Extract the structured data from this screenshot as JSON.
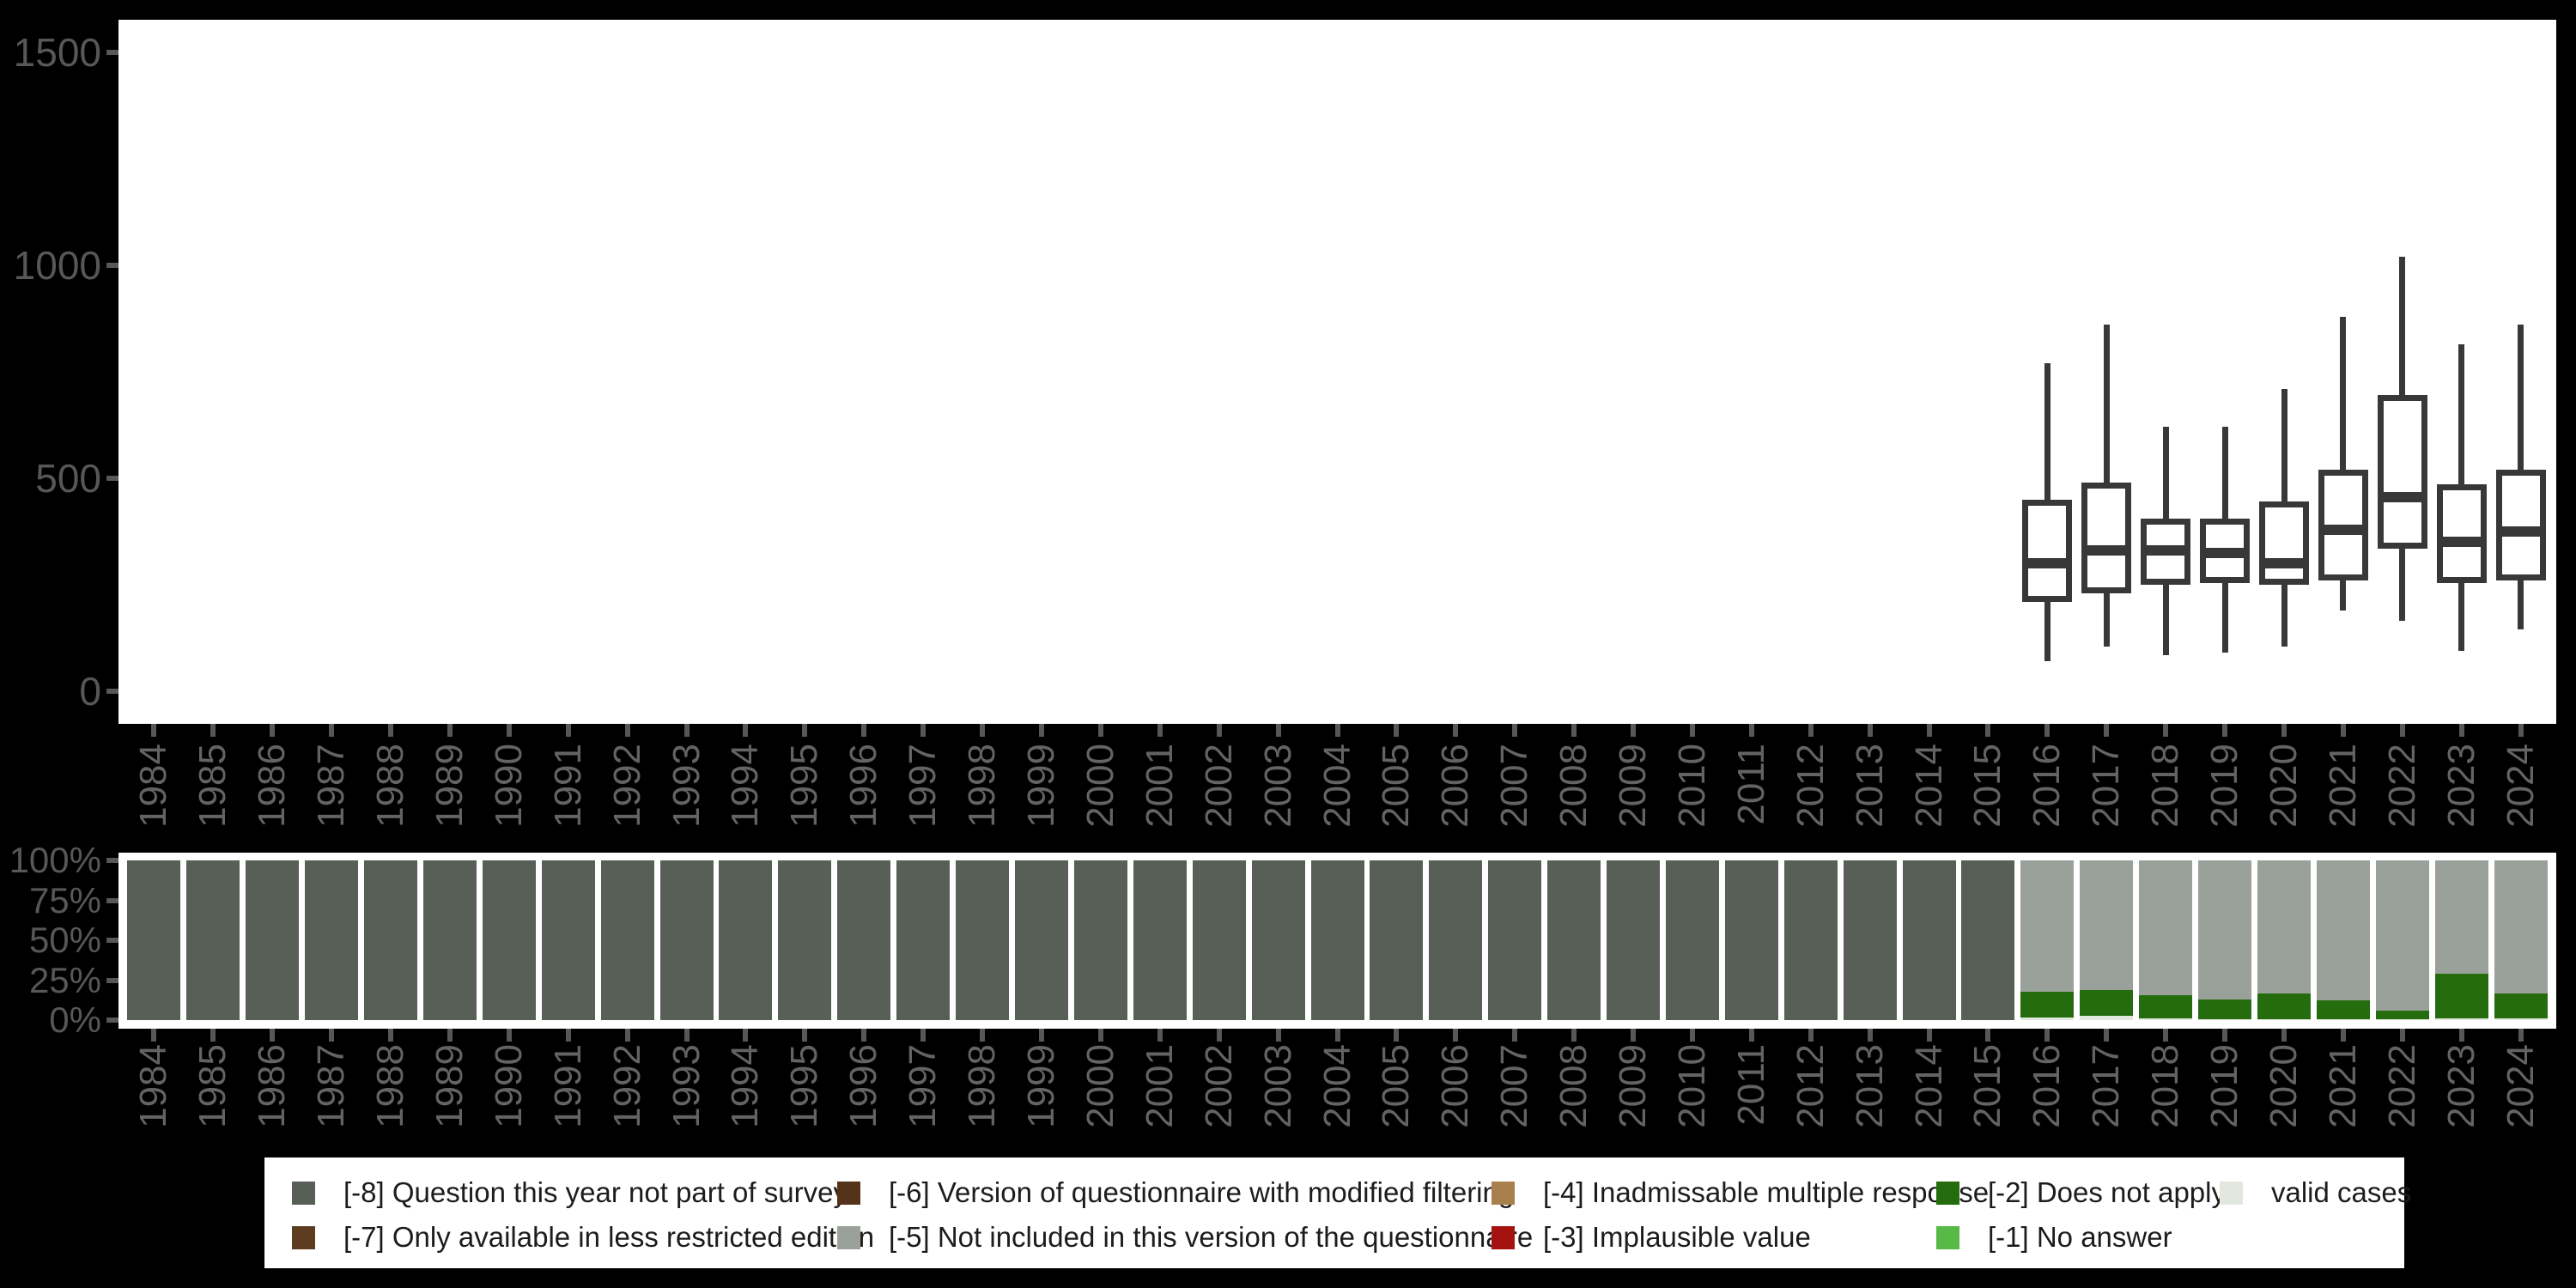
{
  "figure_colors": {
    "background": "#000000",
    "panel": "#ffffff",
    "box_stroke": "#383838",
    "axis_text": "#575757",
    "x_axis_text": "#636363"
  },
  "code_colors": {
    "-8": "#575f57",
    "-7": "#5e3c20",
    "-6": "#54331a",
    "-5": "#9aa19a",
    "-4": "#a8804e",
    "-3": "#a41310",
    "-2": "#246c0e",
    "-1": "#57ba47",
    "valid": "#e2e8de"
  },
  "legend": {
    "items": [
      {
        "code": "-8",
        "label": "[-8] Question this year not part of survey"
      },
      {
        "code": "-7",
        "label": "[-7] Only available in less restricted edition"
      },
      {
        "code": "-6",
        "label": "[-6] Version of questionnaire with modified filtering"
      },
      {
        "code": "-5",
        "label": "[-5] Not included in this version of the questionnaire"
      },
      {
        "code": "-4",
        "label": "[-4] Inadmissable multiple response"
      },
      {
        "code": "-3",
        "label": "[-3] Implausible value"
      },
      {
        "code": "-2",
        "label": "[-2] Does not apply"
      },
      {
        "code": "-1",
        "label": "[-1] No answer"
      },
      {
        "code": "valid",
        "label": "valid cases"
      }
    ]
  },
  "chart_data": [
    {
      "type": "boxplot",
      "title": "",
      "xlabel": "",
      "ylabel": "",
      "ylim": [
        0,
        1500
      ],
      "yticks": [
        0,
        500,
        1000,
        1500
      ],
      "grid": false,
      "x_categories": [
        "1984",
        "1985",
        "1986",
        "1987",
        "1988",
        "1989",
        "1990",
        "1991",
        "1992",
        "1993",
        "1994",
        "1995",
        "1996",
        "1997",
        "1998",
        "1999",
        "2000",
        "2001",
        "2002",
        "2003",
        "2004",
        "2005",
        "2006",
        "2007",
        "2008",
        "2009",
        "2010",
        "2011",
        "2012",
        "2013",
        "2014",
        "2015",
        "2016",
        "2017",
        "2018",
        "2019",
        "2020",
        "2021",
        "2022",
        "2023",
        "2024"
      ],
      "boxes": [
        {
          "x": "2016",
          "min": 70,
          "q1": 210,
          "median": 300,
          "q3": 450,
          "max": 770
        },
        {
          "x": "2017",
          "min": 105,
          "q1": 230,
          "median": 330,
          "q3": 490,
          "max": 860
        },
        {
          "x": "2018",
          "min": 85,
          "q1": 250,
          "median": 330,
          "q3": 405,
          "max": 620
        },
        {
          "x": "2019",
          "min": 90,
          "q1": 255,
          "median": 325,
          "q3": 405,
          "max": 620
        },
        {
          "x": "2020",
          "min": 105,
          "q1": 250,
          "median": 300,
          "q3": 445,
          "max": 710
        },
        {
          "x": "2021",
          "min": 190,
          "q1": 260,
          "median": 380,
          "q3": 520,
          "max": 880
        },
        {
          "x": "2022",
          "min": 165,
          "q1": 335,
          "median": 455,
          "q3": 695,
          "max": 1020
        },
        {
          "x": "2023",
          "min": 95,
          "q1": 255,
          "median": 350,
          "q3": 485,
          "max": 815
        },
        {
          "x": "2024",
          "min": 145,
          "q1": 260,
          "median": 375,
          "q3": 520,
          "max": 860
        }
      ]
    },
    {
      "type": "bar",
      "stacked": true,
      "units": "percent",
      "title": "",
      "xlabel": "",
      "ylabel": "",
      "ylim": [
        0,
        100
      ],
      "ytick_labels": [
        "0%",
        "25%",
        "50%",
        "75%",
        "100%"
      ],
      "grid": false,
      "legend_position": "bottom",
      "segment_order_bottom_to_top": [
        "valid",
        "-2",
        "-5",
        "-8"
      ],
      "x_categories": [
        "1984",
        "1985",
        "1986",
        "1987",
        "1988",
        "1989",
        "1990",
        "1991",
        "1992",
        "1993",
        "1994",
        "1995",
        "1996",
        "1997",
        "1998",
        "1999",
        "2000",
        "2001",
        "2002",
        "2003",
        "2004",
        "2005",
        "2006",
        "2007",
        "2008",
        "2009",
        "2010",
        "2011",
        "2012",
        "2013",
        "2014",
        "2015",
        "2016",
        "2017",
        "2018",
        "2019",
        "2020",
        "2021",
        "2022",
        "2023",
        "2024"
      ],
      "bars": {
        "1984": {
          "-8": 100
        },
        "1985": {
          "-8": 100
        },
        "1986": {
          "-8": 100
        },
        "1987": {
          "-8": 100
        },
        "1988": {
          "-8": 100
        },
        "1989": {
          "-8": 100
        },
        "1990": {
          "-8": 100
        },
        "1991": {
          "-8": 100
        },
        "1992": {
          "-8": 100
        },
        "1993": {
          "-8": 100
        },
        "1994": {
          "-8": 100
        },
        "1995": {
          "-8": 100
        },
        "1996": {
          "-8": 100
        },
        "1997": {
          "-8": 100
        },
        "1998": {
          "-8": 100
        },
        "1999": {
          "-8": 100
        },
        "2000": {
          "-8": 100
        },
        "2001": {
          "-8": 100
        },
        "2002": {
          "-8": 100
        },
        "2003": {
          "-8": 100
        },
        "2004": {
          "-8": 100
        },
        "2005": {
          "-8": 100
        },
        "2006": {
          "-8": 100
        },
        "2007": {
          "-8": 100
        },
        "2008": {
          "-8": 100
        },
        "2009": {
          "-8": 100
        },
        "2010": {
          "-8": 100
        },
        "2011": {
          "-8": 100
        },
        "2012": {
          "-8": 100
        },
        "2013": {
          "-8": 100
        },
        "2014": {
          "-8": 100
        },
        "2015": {
          "-8": 100
        },
        "2016": {
          "valid": 1.5,
          "-2": 16,
          "-5": 82.5
        },
        "2017": {
          "valid": 2.5,
          "-2": 16.5,
          "-5": 81
        },
        "2018": {
          "valid": 1,
          "-2": 14.5,
          "-5": 84.5
        },
        "2019": {
          "valid": 0.5,
          "-2": 12.5,
          "-5": 87
        },
        "2020": {
          "valid": 0.5,
          "-2": 16,
          "-5": 83.5
        },
        "2021": {
          "valid": 0.5,
          "-2": 12,
          "-5": 87.5
        },
        "2022": {
          "valid": 0.5,
          "-2": 5.5,
          "-5": 94
        },
        "2023": {
          "valid": 1,
          "-2": 28,
          "-5": 71
        },
        "2024": {
          "valid": 1,
          "-2": 15.5,
          "-5": 83.5
        }
      }
    }
  ]
}
